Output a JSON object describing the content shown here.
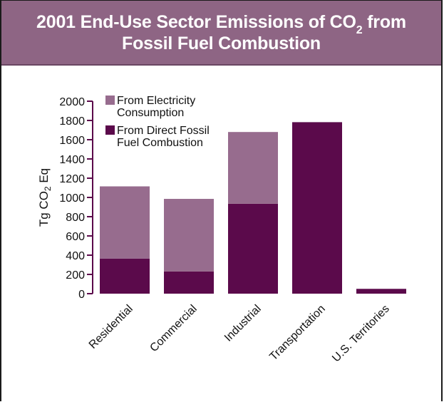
{
  "header": {
    "title_line1_pre": "2001 End-Use Sector Emissions of CO",
    "title_line1_sub": "2",
    "title_line1_post": " from",
    "title_line2": "Fossil Fuel Combustion"
  },
  "colors": {
    "header_bg": "#8e6584",
    "electricity": "#976c8e",
    "direct": "#5b0a4b",
    "axis": "#5b0a4b"
  },
  "chart_data": {
    "type": "bar",
    "stacked": true,
    "title": "2001 End-Use Sector Emissions of CO2 from Fossil Fuel Combustion",
    "ylabel_pre": "Tg CO",
    "ylabel_sub": "2",
    "ylabel_post": " Eq",
    "ylim": [
      0,
      2000
    ],
    "yticks": [
      "0",
      "200",
      "400",
      "600",
      "800",
      "1000",
      "1200",
      "1400",
      "1600",
      "1800",
      "2000"
    ],
    "categories": [
      "Residential",
      "Commercial",
      "Industrial",
      "Transportation",
      "U.S. Territories"
    ],
    "series": [
      {
        "name": "From Direct Fossil Fuel Combustion",
        "legend_lines": [
          "From Direct Fossil",
          "Fuel Combustion"
        ],
        "values": [
          365,
          230,
          935,
          1780,
          50
        ]
      },
      {
        "name": "From Electricity Consumption",
        "legend_lines": [
          "From Electricity",
          "Consumption"
        ],
        "values": [
          750,
          755,
          745,
          5,
          0
        ]
      }
    ],
    "legend_position": "top-left",
    "grid": false
  }
}
